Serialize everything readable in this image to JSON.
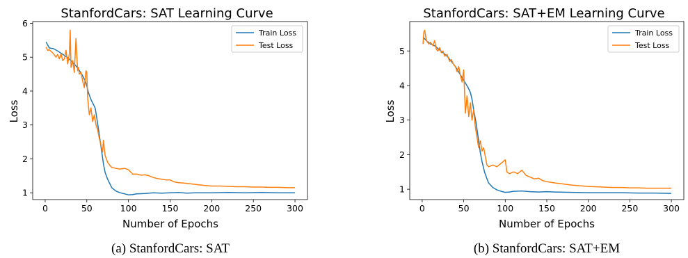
{
  "colors": {
    "train": "#1f77b4",
    "test": "#ff7f0e"
  },
  "captions": [
    "(a) StanfordCars: SAT",
    "(b) StanfordCars: SAT+EM"
  ],
  "chart_data": [
    {
      "type": "line",
      "title": "StanfordCars: SAT Learning Curve",
      "xlabel": "Number of Epochs",
      "ylabel": "Loss",
      "xlim": [
        -15,
        315
      ],
      "ylim": [
        0.8,
        6.05
      ],
      "xticks": [
        0,
        50,
        100,
        150,
        200,
        250,
        300
      ],
      "yticks": [
        1,
        2,
        3,
        4,
        5,
        6
      ],
      "legend": "top-right",
      "grid": false,
      "series": [
        {
          "name": "Train Loss",
          "color": "#1f77b4",
          "x": [
            1,
            5,
            10,
            15,
            20,
            25,
            30,
            35,
            40,
            45,
            48,
            50,
            52,
            55,
            58,
            60,
            62,
            65,
            68,
            70,
            72,
            75,
            78,
            80,
            85,
            90,
            95,
            100,
            105,
            110,
            120,
            130,
            140,
            150,
            160,
            170,
            180,
            200,
            220,
            240,
            260,
            280,
            300
          ],
          "y": [
            5.45,
            5.27,
            5.25,
            5.18,
            5.1,
            5.02,
            4.92,
            4.8,
            4.65,
            4.45,
            4.3,
            4.15,
            3.95,
            3.75,
            3.6,
            3.5,
            3.2,
            2.7,
            2.2,
            1.85,
            1.6,
            1.4,
            1.25,
            1.15,
            1.05,
            1.0,
            0.97,
            0.94,
            0.95,
            0.97,
            0.98,
            1.0,
            0.99,
            1.0,
            1.01,
            0.99,
            1.0,
            1.0,
            1.01,
            1.0,
            1.01,
            1.0,
            1.0
          ]
        },
        {
          "name": "Test Loss",
          "color": "#ff7f0e",
          "x": [
            1,
            3,
            5,
            8,
            10,
            13,
            15,
            17,
            19,
            21,
            23,
            25,
            27,
            29,
            30,
            31,
            33,
            35,
            37,
            39,
            40,
            41,
            43,
            45,
            47,
            49,
            50,
            51,
            53,
            55,
            57,
            59,
            61,
            63,
            65,
            67,
            69,
            70,
            72,
            75,
            78,
            80,
            85,
            90,
            95,
            100,
            105,
            110,
            115,
            120,
            125,
            130,
            135,
            140,
            145,
            150,
            155,
            160,
            170,
            180,
            190,
            200,
            210,
            220,
            230,
            240,
            250,
            260,
            270,
            280,
            290,
            300
          ],
          "y": [
            5.3,
            5.2,
            5.22,
            5.15,
            5.1,
            5.0,
            5.08,
            4.95,
            5.1,
            4.9,
            4.95,
            5.2,
            4.8,
            5.1,
            5.8,
            4.7,
            4.9,
            4.55,
            5.55,
            4.6,
            4.7,
            4.5,
            4.55,
            4.3,
            4.1,
            4.6,
            4.55,
            3.8,
            3.3,
            3.5,
            3.1,
            3.3,
            3.0,
            2.85,
            2.6,
            2.4,
            2.2,
            2.55,
            2.1,
            1.9,
            1.8,
            1.75,
            1.72,
            1.7,
            1.72,
            1.68,
            1.55,
            1.55,
            1.52,
            1.53,
            1.5,
            1.45,
            1.42,
            1.4,
            1.38,
            1.38,
            1.32,
            1.3,
            1.28,
            1.25,
            1.22,
            1.2,
            1.2,
            1.19,
            1.18,
            1.18,
            1.17,
            1.17,
            1.16,
            1.16,
            1.15,
            1.15
          ]
        }
      ]
    },
    {
      "type": "line",
      "title": "StanfordCars: SAT+EM Learning Curve",
      "xlabel": "Number of Epochs",
      "ylabel": "Loss",
      "xlim": [
        -15,
        315
      ],
      "ylim": [
        0.7,
        5.85
      ],
      "xticks": [
        0,
        50,
        100,
        150,
        200,
        250,
        300
      ],
      "yticks": [
        1,
        2,
        3,
        4,
        5
      ],
      "legend": "top-right",
      "grid": false,
      "series": [
        {
          "name": "Train Loss",
          "color": "#1f77b4",
          "x": [
            1,
            5,
            10,
            15,
            20,
            25,
            30,
            35,
            40,
            45,
            50,
            55,
            58,
            60,
            62,
            65,
            68,
            70,
            72,
            75,
            78,
            80,
            85,
            90,
            95,
            100,
            105,
            110,
            120,
            130,
            140,
            150,
            160,
            180,
            200,
            220,
            240,
            260,
            280,
            300
          ],
          "y": [
            5.4,
            5.3,
            5.2,
            5.15,
            5.05,
            4.95,
            4.85,
            4.7,
            4.55,
            4.35,
            4.15,
            3.95,
            3.8,
            3.6,
            3.3,
            2.9,
            2.4,
            2.05,
            1.8,
            1.5,
            1.3,
            1.18,
            1.05,
            0.98,
            0.94,
            0.91,
            0.92,
            0.94,
            0.95,
            0.93,
            0.92,
            0.93,
            0.92,
            0.91,
            0.9,
            0.9,
            0.9,
            0.89,
            0.89,
            0.88
          ]
        },
        {
          "name": "Test Loss",
          "color": "#ff7f0e",
          "x": [
            1,
            2,
            3,
            5,
            8,
            10,
            13,
            15,
            17,
            19,
            21,
            23,
            25,
            27,
            30,
            33,
            35,
            38,
            40,
            42,
            44,
            46,
            48,
            50,
            51,
            52,
            54,
            56,
            58,
            60,
            62,
            64,
            66,
            68,
            70,
            72,
            74,
            76,
            78,
            80,
            85,
            90,
            95,
            100,
            102,
            105,
            110,
            115,
            120,
            125,
            130,
            135,
            140,
            145,
            150,
            160,
            170,
            180,
            190,
            200,
            210,
            220,
            230,
            240,
            250,
            260,
            270,
            280,
            290,
            300
          ],
          "y": [
            5.2,
            5.55,
            5.6,
            5.3,
            5.2,
            5.25,
            5.15,
            5.3,
            5.05,
            5.0,
            5.1,
            4.95,
            5.0,
            4.85,
            4.9,
            4.7,
            4.75,
            4.6,
            4.55,
            4.4,
            4.55,
            4.3,
            4.1,
            4.45,
            3.8,
            3.2,
            3.7,
            3.1,
            3.5,
            3.0,
            3.3,
            2.8,
            2.5,
            2.2,
            2.4,
            2.1,
            2.2,
            1.95,
            1.7,
            1.65,
            1.7,
            1.65,
            1.75,
            1.85,
            1.5,
            1.45,
            1.5,
            1.45,
            1.55,
            1.4,
            1.35,
            1.3,
            1.32,
            1.25,
            1.22,
            1.18,
            1.15,
            1.12,
            1.1,
            1.08,
            1.07,
            1.06,
            1.05,
            1.05,
            1.04,
            1.04,
            1.03,
            1.03,
            1.03,
            1.03
          ]
        }
      ]
    }
  ]
}
